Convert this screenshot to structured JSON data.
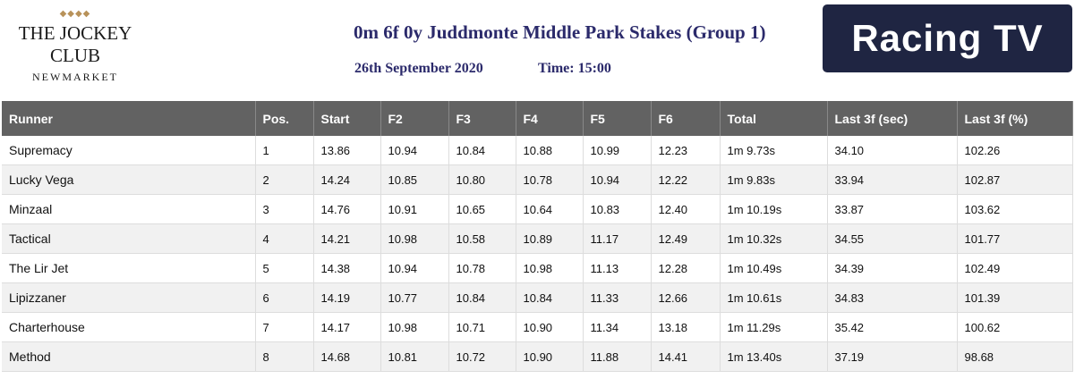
{
  "header": {
    "logo_left": {
      "name": "THE JOCKEY CLUB",
      "sub": "NEWMARKET"
    },
    "title": "0m 6f 0y Juddmonte Middle Park Stakes (Group 1)",
    "date": "26th September 2020",
    "time": "Time: 15:00",
    "logo_right": "Racing TV"
  },
  "table": {
    "columns": [
      "Runner",
      "Pos.",
      "Start",
      "F2",
      "F3",
      "F4",
      "F5",
      "F6",
      "Total",
      "Last 3f (sec)",
      "Last 3f (%)"
    ],
    "rows": [
      [
        "Supremacy",
        "1",
        "13.86",
        "10.94",
        "10.84",
        "10.88",
        "10.99",
        "12.23",
        "1m 9.73s",
        "34.10",
        "102.26"
      ],
      [
        "Lucky Vega",
        "2",
        "14.24",
        "10.85",
        "10.80",
        "10.78",
        "10.94",
        "12.22",
        "1m 9.83s",
        "33.94",
        "102.87"
      ],
      [
        "Minzaal",
        "3",
        "14.76",
        "10.91",
        "10.65",
        "10.64",
        "10.83",
        "12.40",
        "1m 10.19s",
        "33.87",
        "103.62"
      ],
      [
        "Tactical",
        "4",
        "14.21",
        "10.98",
        "10.58",
        "10.89",
        "11.17",
        "12.49",
        "1m 10.32s",
        "34.55",
        "101.77"
      ],
      [
        "The Lir Jet",
        "5",
        "14.38",
        "10.94",
        "10.78",
        "10.98",
        "11.13",
        "12.28",
        "1m 10.49s",
        "34.39",
        "102.49"
      ],
      [
        "Lipizzaner",
        "6",
        "14.19",
        "10.77",
        "10.84",
        "10.84",
        "11.33",
        "12.66",
        "1m 10.61s",
        "34.83",
        "101.39"
      ],
      [
        "Charterhouse",
        "7",
        "14.17",
        "10.98",
        "10.71",
        "10.90",
        "11.34",
        "13.18",
        "1m 11.29s",
        "35.42",
        "100.62"
      ],
      [
        "Method",
        "8",
        "14.68",
        "10.81",
        "10.72",
        "10.90",
        "11.88",
        "14.41",
        "1m 13.40s",
        "37.19",
        "98.68"
      ]
    ]
  }
}
